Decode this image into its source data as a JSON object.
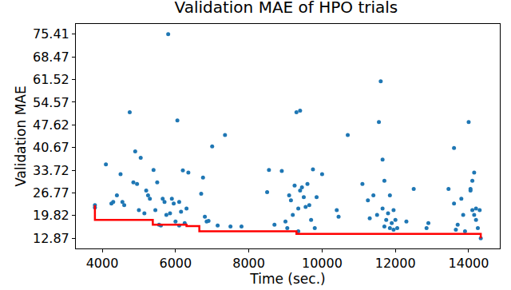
{
  "chart_data": {
    "type": "scatter",
    "title": "Validation MAE of HPO trials",
    "x_label": "Time (sec.)",
    "y_label": "Validation MAE",
    "xlim": [
      3280,
      14850
    ],
    "xticks": [
      4000,
      6000,
      8000,
      10000,
      12000,
      14000
    ],
    "ylim": [
      9.74,
      78.54
    ],
    "yticks": [
      12.87,
      19.82,
      26.77,
      33.72,
      40.67,
      47.62,
      54.57,
      61.52,
      68.47,
      75.41
    ],
    "grid": false,
    "series": [
      {
        "type": "scatter",
        "color": "#1f77b4",
        "marker": "circle",
        "x": [
          3800,
          3800,
          4100,
          4250,
          4300,
          4400,
          4500,
          4550,
          4600,
          4750,
          4850,
          4900,
          4950,
          5000,
          5050,
          5150,
          5200,
          5250,
          5300,
          5400,
          5450,
          5500,
          5550,
          5600,
          5650,
          5700,
          5750,
          5800,
          5850,
          5900,
          5950,
          6000,
          6050,
          6100,
          6150,
          6200,
          6250,
          6300,
          6350,
          6100,
          6700,
          6750,
          6800,
          6850,
          6900,
          7000,
          7150,
          7350,
          7500,
          7800,
          8550,
          8500,
          8700,
          8900,
          9000,
          9050,
          9100,
          9150,
          9200,
          9300,
          9250,
          9350,
          9400,
          9350,
          9400,
          9450,
          9500,
          9550,
          9600,
          9650,
          9700,
          9750,
          9800,
          9850,
          10000,
          10400,
          10450,
          10700,
          11100,
          11250,
          11300,
          11400,
          11500,
          11550,
          11600,
          11650,
          11650,
          11700,
          11700,
          11750,
          11800,
          11850,
          11850,
          11900,
          11950,
          11950,
          12000,
          12050,
          12300,
          12500,
          12850,
          12900,
          13450,
          13600,
          13600,
          13650,
          13700,
          13800,
          13850,
          13900,
          14000,
          14050,
          14050,
          14100,
          14100,
          14150,
          14150,
          14200,
          14200,
          14250,
          14300,
          14330
        ],
        "values": [
          23.0,
          22.3,
          35.5,
          23.5,
          24.0,
          26.0,
          32.5,
          24.0,
          23.0,
          51.5,
          30.0,
          39.5,
          29.5,
          21.5,
          37.5,
          20.5,
          27.5,
          26.0,
          25.0,
          33.8,
          21.5,
          30.0,
          17.0,
          16.8,
          25.0,
          24.0,
          20.0,
          75.41,
          20.5,
          25.0,
          23.5,
          18.0,
          49.0,
          16.8,
          21.0,
          33.7,
          17.5,
          22.0,
          33.0,
          24.0,
          26.5,
          31.5,
          19.5,
          18.0,
          18.2,
          41.0,
          16.8,
          44.5,
          16.5,
          16.5,
          33.8,
          27.0,
          17.0,
          33.5,
          18.0,
          16.0,
          26.0,
          24.5,
          20.0,
          51.5,
          29.0,
          15.0,
          52.0,
          22.0,
          27.5,
          28.5,
          25.5,
          22.5,
          29.5,
          23.0,
          18.5,
          34.0,
          16.0,
          25.5,
          32.5,
          21.5,
          19.5,
          44.5,
          29.5,
          24.5,
          19.0,
          26.0,
          20.0,
          48.5,
          61.0,
          37.0,
          22.0,
          16.5,
          30.5,
          18.5,
          20.5,
          16.0,
          26.0,
          17.5,
          15.5,
          21.5,
          18.5,
          16.0,
          18.0,
          28.0,
          16.0,
          17.5,
          28.0,
          40.5,
          23.5,
          15.5,
          17.0,
          25.0,
          20.0,
          15.0,
          48.5,
          28.0,
          27.5,
          30.5,
          21.5,
          33.0,
          20.0,
          18.5,
          22.0,
          16.0,
          21.5,
          12.87
        ]
      },
      {
        "type": "line",
        "color": "#ff0000",
        "line_style": "step",
        "x": [
          3800,
          3800,
          5380,
          6300,
          6650,
          9300,
          14330
        ],
        "values": [
          23.0,
          18.5,
          17.0,
          16.6,
          15.0,
          14.2,
          12.87
        ]
      }
    ]
  }
}
